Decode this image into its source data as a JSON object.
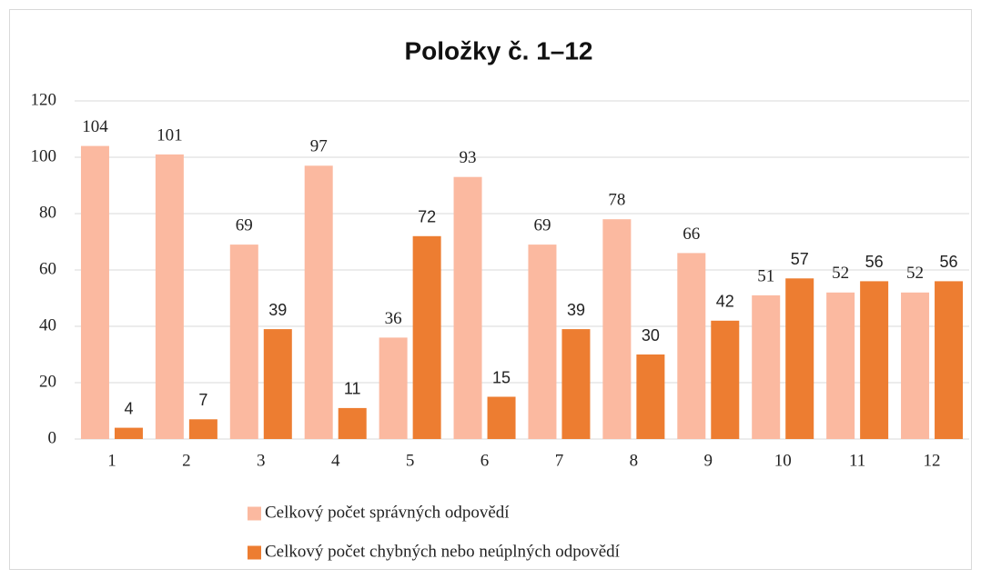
{
  "chart_data": {
    "type": "bar",
    "title": "Položky č. 1–12",
    "categories": [
      "1",
      "2",
      "3",
      "4",
      "5",
      "6",
      "7",
      "8",
      "9",
      "10",
      "11",
      "12"
    ],
    "series": [
      {
        "name": "Celkový počet správných odpovědí",
        "color": "#fbb9a0",
        "values": [
          104,
          101,
          69,
          97,
          36,
          93,
          69,
          78,
          66,
          51,
          52,
          52
        ]
      },
      {
        "name": "Celkový počet chybných nebo neúplných odpovědí",
        "color": "#ed7d31",
        "values": [
          4,
          7,
          39,
          11,
          72,
          15,
          39,
          30,
          42,
          57,
          56,
          56
        ]
      }
    ],
    "ylim": [
      0,
      120
    ],
    "yticks": [
      0,
      20,
      40,
      60,
      80,
      100,
      120
    ],
    "grid": true,
    "legend": "bottom"
  }
}
